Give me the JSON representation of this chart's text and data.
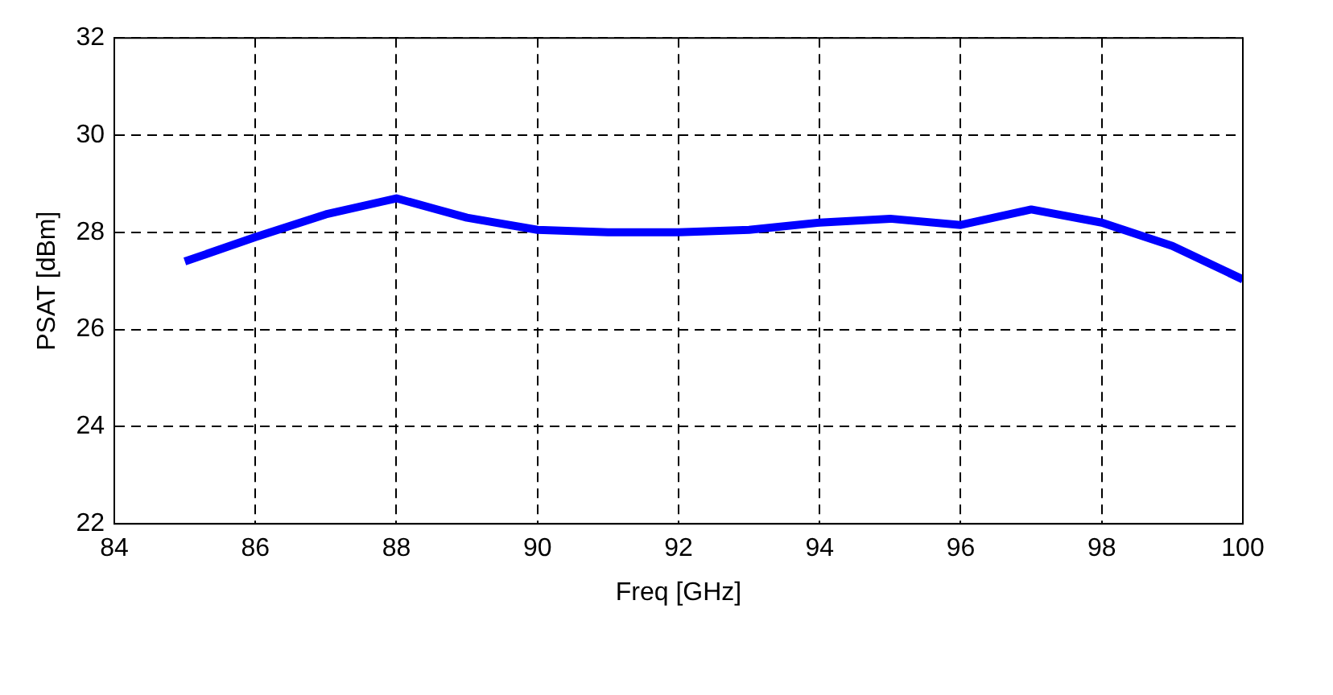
{
  "chart_data": {
    "type": "line",
    "xlabel": "Freq [GHz]",
    "ylabel": "PSAT [dBm]",
    "x": [
      85,
      86,
      87,
      88,
      89,
      90,
      91,
      92,
      93,
      94,
      95,
      96,
      97,
      98,
      99,
      100
    ],
    "series": [
      {
        "color": "#0000ff",
        "values": [
          27.4,
          27.9,
          28.37,
          28.7,
          28.3,
          28.05,
          28.0,
          28.0,
          28.05,
          28.2,
          28.28,
          28.15,
          28.47,
          28.2,
          27.72,
          27.03
        ]
      }
    ],
    "xlim": [
      84,
      100
    ],
    "xticks": [
      84,
      86,
      88,
      90,
      92,
      94,
      96,
      98,
      100
    ],
    "ylim": [
      22,
      32
    ],
    "yticks": [
      22,
      24,
      26,
      28,
      30,
      32
    ],
    "grid": true,
    "legend": false,
    "marker": "none",
    "line_style": "solid"
  }
}
